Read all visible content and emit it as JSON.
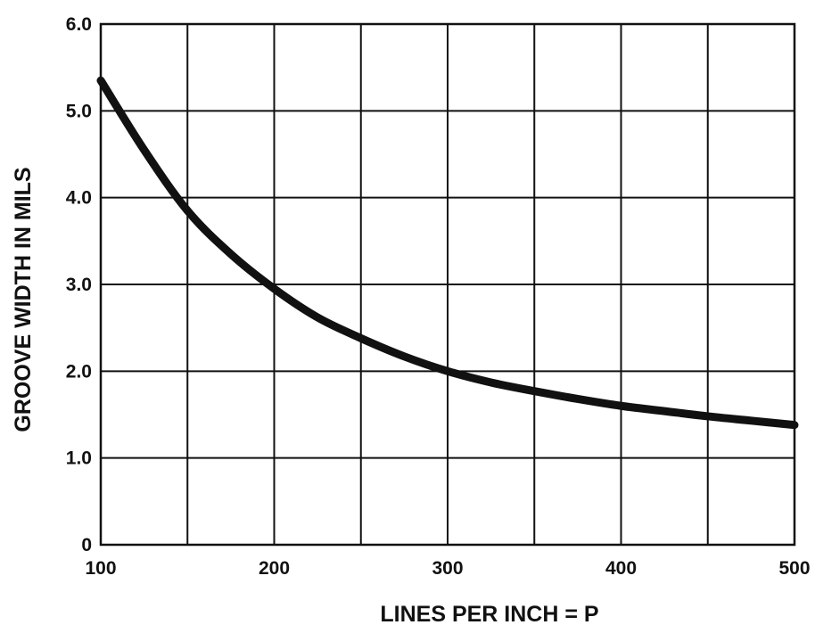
{
  "chart_data": {
    "type": "line",
    "title": "",
    "xlabel": "LINES PER INCH = P",
    "ylabel": "GROOVE WIDTH IN MILS",
    "xlim": [
      100,
      500
    ],
    "ylim": [
      0,
      6.0
    ],
    "x_ticks": [
      100,
      200,
      300,
      400,
      500
    ],
    "x_tick_labels": [
      "100",
      "200",
      "300",
      "400",
      "500"
    ],
    "y_ticks": [
      0,
      1.0,
      2.0,
      3.0,
      4.0,
      5.0,
      6.0
    ],
    "y_tick_labels": [
      "0",
      "1.0",
      "2.0",
      "3.0",
      "4.0",
      "5.0",
      "6.0"
    ],
    "grid": true,
    "grid_x_step": 50,
    "grid_y_step": 1.0,
    "legend": "none",
    "line_color": "#111111",
    "series": [
      {
        "x": [
          100,
          125,
          150,
          175,
          200,
          225,
          250,
          275,
          300,
          325,
          350,
          375,
          400,
          425,
          450,
          475,
          500
        ],
        "y": [
          5.35,
          4.55,
          3.85,
          3.35,
          2.95,
          2.62,
          2.38,
          2.17,
          2.0,
          1.87,
          1.77,
          1.68,
          1.6,
          1.54,
          1.48,
          1.43,
          1.38
        ]
      }
    ]
  }
}
